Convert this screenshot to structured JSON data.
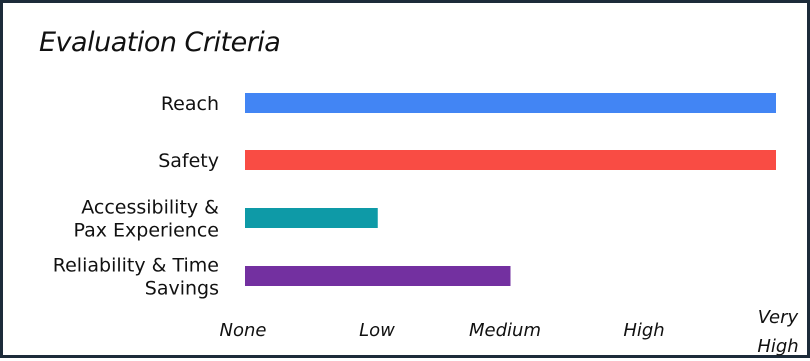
{
  "chart_data": {
    "type": "bar",
    "orientation": "horizontal",
    "title": "Evaluation Criteria",
    "categories": [
      [
        "Reach"
      ],
      [
        "Safety"
      ],
      [
        "Accessibility &",
        "Pax Experience"
      ],
      [
        "Reliability & Time",
        "Savings"
      ]
    ],
    "values": [
      4,
      4,
      1,
      2
    ],
    "colors": [
      "#4285f4",
      "#f94c44",
      "#0e9aa7",
      "#7330a0"
    ],
    "xlim": [
      0,
      4
    ],
    "ticks": [
      {
        "value": 0,
        "lines": [
          "None"
        ]
      },
      {
        "value": 1,
        "lines": [
          "Low"
        ]
      },
      {
        "value": 2,
        "lines": [
          "Medium"
        ]
      },
      {
        "value": 3,
        "lines": [
          "High"
        ]
      },
      {
        "value": 4,
        "lines": [
          "Very",
          "High"
        ]
      }
    ],
    "grid": false,
    "legend": "none"
  }
}
